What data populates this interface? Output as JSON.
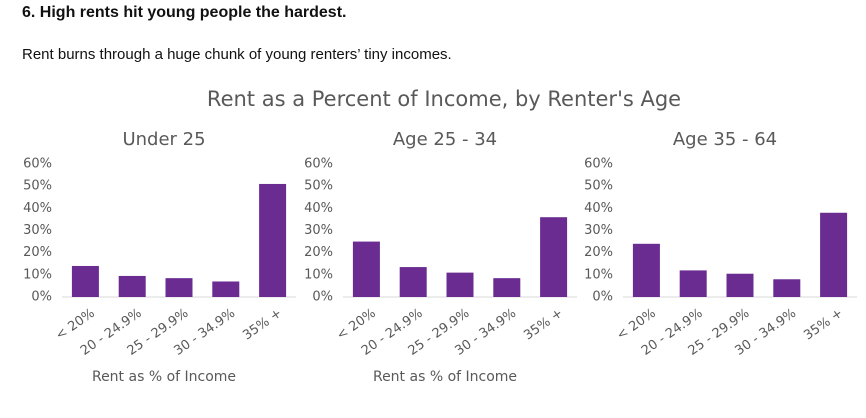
{
  "header": {
    "heading": "6. High rents hit young people the hardest.",
    "subtitle": "Rent burns through a huge chunk of young renters’ tiny incomes."
  },
  "figure_title": "Rent as a Percent of Income, by Renter's Age",
  "chart_data": [
    {
      "type": "bar",
      "title": "Under 25",
      "xlabel": "Rent as % of Income",
      "categories": [
        "< 20%",
        "20 - 24.9%",
        "25 - 29.9%",
        "30 - 34.9%",
        "35% +"
      ],
      "values": [
        14,
        9.5,
        8.5,
        7,
        51
      ],
      "color": "#6a2c91",
      "ylim": [
        0,
        60
      ],
      "yticks": [
        {
          "value": 0,
          "label": "0%"
        },
        {
          "value": 10,
          "label": "10%"
        },
        {
          "value": 20,
          "label": "20%"
        },
        {
          "value": 30,
          "label": "30%"
        },
        {
          "value": 40,
          "label": "40%"
        },
        {
          "value": 50,
          "label": "50%"
        },
        {
          "value": 60,
          "label": "60%"
        }
      ]
    },
    {
      "type": "bar",
      "title": "Age 25 - 34",
      "xlabel": "Rent as % of Income",
      "categories": [
        "< 20%",
        "20 - 24.9%",
        "25 - 29.9%",
        "30 - 34.9%",
        "35% +"
      ],
      "values": [
        25,
        13.5,
        11,
        8.5,
        36
      ],
      "color": "#6a2c91",
      "ylim": [
        0,
        60
      ],
      "yticks": [
        {
          "value": 0,
          "label": "0%"
        },
        {
          "value": 10,
          "label": "10%"
        },
        {
          "value": 20,
          "label": "20%"
        },
        {
          "value": 30,
          "label": "30%"
        },
        {
          "value": 40,
          "label": "40%"
        },
        {
          "value": 50,
          "label": "50%"
        },
        {
          "value": 60,
          "label": "60%"
        }
      ]
    },
    {
      "type": "bar",
      "title": "Age 35 - 64",
      "categories": [
        "< 20%",
        "20 - 24.9%",
        "25 - 29.9%",
        "30 - 34.9%",
        "35% +"
      ],
      "values": [
        24,
        12,
        10.5,
        8,
        38
      ],
      "color": "#6a2c91",
      "ylim": [
        0,
        60
      ],
      "yticks": [
        {
          "value": 0,
          "label": "0%"
        },
        {
          "value": 10,
          "label": "10%"
        },
        {
          "value": 20,
          "label": "20%"
        },
        {
          "value": 30,
          "label": "30%"
        },
        {
          "value": 40,
          "label": "40%"
        },
        {
          "value": 50,
          "label": "50%"
        },
        {
          "value": 60,
          "label": "60%"
        }
      ]
    }
  ]
}
